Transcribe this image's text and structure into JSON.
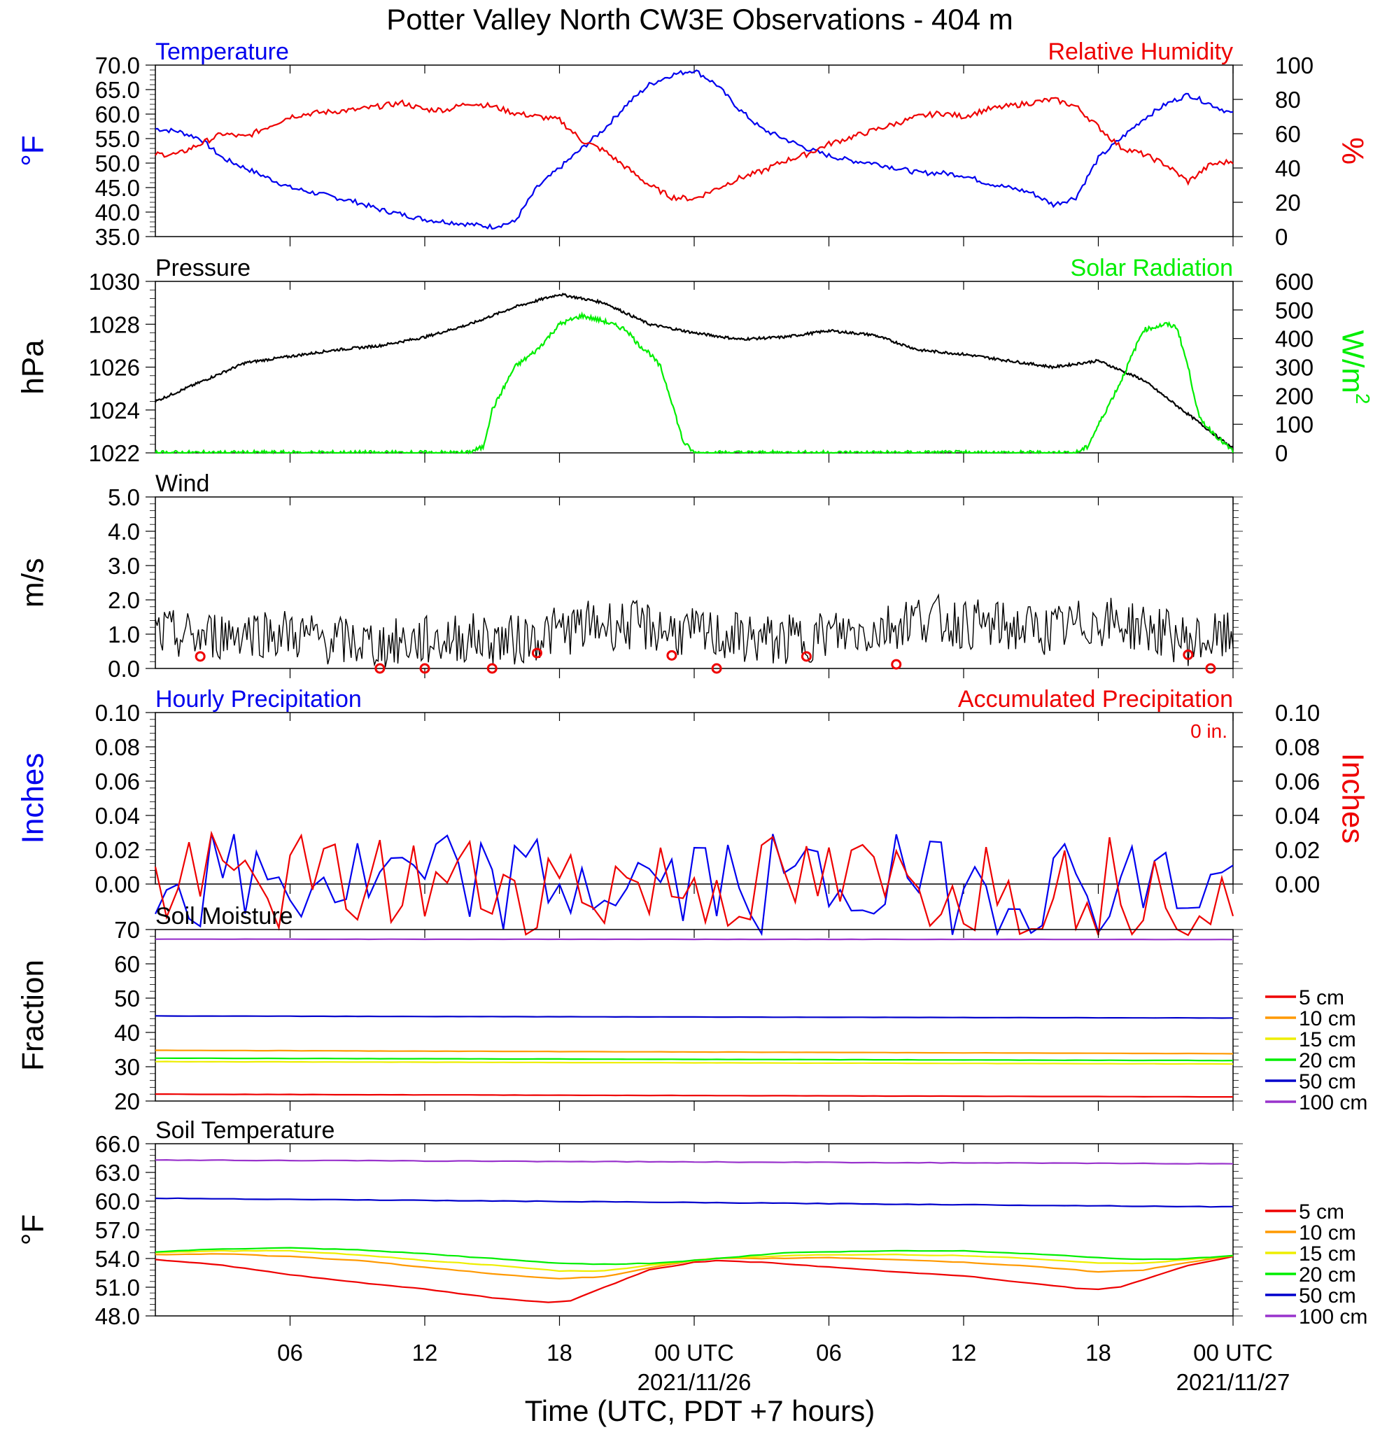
{
  "title": "Potter Valley North CW3E Observations - 404 m",
  "xlabel": "Time (UTC, PDT +7 hours)",
  "x_ticks": [
    {
      "t": 6,
      "label": "06"
    },
    {
      "t": 12,
      "label": "12"
    },
    {
      "t": 18,
      "label": "18"
    },
    {
      "t": 24,
      "label": "00 UTC",
      "date": "2021/11/26"
    },
    {
      "t": 30,
      "label": "06"
    },
    {
      "t": 36,
      "label": "12"
    },
    {
      "t": 42,
      "label": "18"
    },
    {
      "t": 48,
      "label": "00 UTC",
      "date": "2021/11/27"
    }
  ],
  "colors": {
    "temperature": "#0000ee",
    "humidity": "#ee0000",
    "pressure": "#000000",
    "solar": "#00ee00",
    "wind": "#000000",
    "wind_barb": "#ee0000"
  },
  "chart_data": [
    {
      "type": "line",
      "panel": "temp_rh",
      "title_left": "Temperature",
      "title_right": "Relative Humidity",
      "ylabel_left": "°F",
      "ylabel_right": "%",
      "ylim_left": [
        35,
        70
      ],
      "yticks_left": [
        "70.0",
        "65.0",
        "60.0",
        "55.0",
        "50.0",
        "45.0",
        "40.0",
        "35.0"
      ],
      "ylim_right": [
        0,
        100
      ],
      "yticks_right": [
        "100",
        "80",
        "60",
        "40",
        "20",
        "0"
      ],
      "x_range_hours": [
        0,
        48
      ],
      "series": [
        {
          "name": "Temperature",
          "axis": "left",
          "color": "#0000ee",
          "x": [
            0,
            1,
            2,
            3,
            4,
            5,
            6,
            7,
            8,
            9,
            10,
            11,
            12,
            13,
            14,
            15,
            16,
            17,
            18,
            19,
            20,
            21,
            22,
            23,
            24,
            25,
            26,
            27,
            28,
            29,
            30,
            31,
            32,
            33,
            34,
            35,
            36,
            37,
            38,
            39,
            40,
            41,
            42,
            43,
            44,
            45,
            46,
            47,
            48
          ],
          "values": [
            57,
            56.5,
            55,
            51,
            49,
            47,
            45,
            44,
            43,
            42,
            40.5,
            39.5,
            38.5,
            38,
            37.5,
            37,
            38,
            45,
            49,
            53,
            57,
            62,
            66,
            68,
            69,
            66,
            61,
            57,
            55,
            53,
            51.5,
            50.5,
            50,
            49,
            48,
            48,
            47.5,
            46,
            45,
            44,
            41.5,
            43,
            51,
            55,
            59,
            62,
            64,
            62,
            60
          ]
        },
        {
          "name": "Relative Humidity",
          "axis": "right",
          "color": "#ee0000",
          "x": [
            0,
            1,
            2,
            3,
            4,
            5,
            6,
            7,
            8,
            9,
            10,
            11,
            12,
            13,
            14,
            15,
            16,
            17,
            18,
            19,
            20,
            21,
            22,
            23,
            24,
            25,
            26,
            27,
            28,
            29,
            30,
            31,
            32,
            33,
            34,
            35,
            36,
            37,
            38,
            39,
            40,
            41,
            42,
            43,
            44,
            45,
            46,
            47,
            48
          ],
          "values": [
            48,
            48,
            54,
            60,
            58,
            64,
            70,
            72,
            73,
            74,
            76,
            78,
            74,
            74,
            78,
            76,
            72,
            70,
            68,
            56,
            50,
            40,
            30,
            23,
            22,
            28,
            34,
            38,
            44,
            48,
            54,
            58,
            62,
            66,
            70,
            72,
            70,
            74,
            76,
            78,
            80,
            76,
            64,
            52,
            48,
            42,
            32,
            42,
            44
          ]
        }
      ]
    },
    {
      "type": "line",
      "panel": "pressure_solar",
      "title_left": "Pressure",
      "title_right": "Solar Radiation",
      "ylabel_left": "hPa",
      "ylabel_right": "W/m",
      "ylabel_right_sup": "2",
      "ylim_left": [
        1022,
        1030
      ],
      "yticks_left": [
        "1030",
        "1028",
        "1026",
        "1024",
        "1022"
      ],
      "ylim_right": [
        0,
        600
      ],
      "yticks_right": [
        "600",
        "500",
        "400",
        "300",
        "200",
        "100",
        "0"
      ],
      "x_range_hours": [
        0,
        48
      ],
      "series": [
        {
          "name": "Pressure",
          "axis": "left",
          "color": "#000000",
          "x": [
            0,
            2,
            4,
            6,
            8,
            10,
            12,
            14,
            16,
            18,
            20,
            22,
            24,
            26,
            28,
            30,
            32,
            34,
            36,
            38,
            40,
            42,
            44,
            46,
            48
          ],
          "values": [
            1024.4,
            1025.3,
            1026.2,
            1026.5,
            1026.8,
            1027,
            1027.4,
            1028,
            1028.8,
            1029.4,
            1029,
            1028,
            1027.6,
            1027.3,
            1027.4,
            1027.7,
            1027.5,
            1026.8,
            1026.6,
            1026.3,
            1026,
            1026.3,
            1025.4,
            1023.8,
            1022.2
          ]
        },
        {
          "name": "Solar Radiation",
          "axis": "right",
          "color": "#00ee00",
          "x": [
            0,
            13.9,
            14.6,
            15,
            16,
            17,
            18,
            19,
            20,
            21,
            21.5,
            22,
            22.5,
            23,
            23.5,
            24,
            41,
            41.5,
            43,
            44,
            45,
            45.5,
            46,
            46.5,
            47,
            47.5,
            48
          ],
          "values": [
            0,
            0,
            20,
            150,
            300,
            360,
            450,
            480,
            460,
            430,
            380,
            350,
            300,
            180,
            40,
            0,
            0,
            20,
            250,
            430,
            450,
            440,
            300,
            120,
            80,
            40,
            5
          ]
        }
      ]
    },
    {
      "type": "line",
      "panel": "wind",
      "title_left": "Wind",
      "ylabel_left": "m/s",
      "ylim_left": [
        0,
        5
      ],
      "yticks_left": [
        "5.0",
        "4.0",
        "3.0",
        "2.0",
        "1.0",
        "0.0"
      ],
      "x_range_hours": [
        0,
        48
      ],
      "series": [
        {
          "name": "Wind speed",
          "axis": "left",
          "color": "#000000",
          "x": [
            0,
            2,
            4,
            6,
            8,
            10,
            12,
            14,
            16,
            18,
            20,
            22,
            24,
            26,
            28,
            30,
            32,
            34,
            36,
            38,
            40,
            42,
            44,
            46,
            48
          ],
          "values": [
            1.0,
            0.9,
            1.1,
            1.0,
            0.8,
            0.7,
            0.8,
            0.9,
            0.8,
            1.1,
            1.3,
            1.2,
            1.0,
            0.9,
            0.8,
            1.0,
            1.1,
            1.5,
            1.3,
            1.2,
            1.1,
            1.4,
            1.2,
            0.8,
            0.9
          ]
        }
      ],
      "barbs": [
        {
          "t": 2,
          "speed": 0.35
        },
        {
          "t": 10,
          "speed": 0.0
        },
        {
          "t": 12,
          "speed": 0.0
        },
        {
          "t": 15,
          "speed": 0.0
        },
        {
          "t": 17,
          "speed": 0.45
        },
        {
          "t": 23,
          "speed": 0.38
        },
        {
          "t": 25,
          "speed": 0.0
        },
        {
          "t": 29,
          "speed": 0.35
        },
        {
          "t": 33,
          "speed": 0.12
        },
        {
          "t": 46,
          "speed": 0.4
        },
        {
          "t": 47,
          "speed": 0.0
        }
      ]
    },
    {
      "type": "line",
      "panel": "precip",
      "title_left": "Hourly Precipitation",
      "title_right": "Accumulated Precipitation",
      "annotation": "0 in.",
      "ylabel_left": "Inches",
      "ylabel_right": "Inches",
      "ylim_left": [
        0,
        0.1
      ],
      "yticks_left": [
        "0.10",
        "0.08",
        "0.06",
        "0.04",
        "0.02",
        "0.00"
      ],
      "ylim_right": [
        0,
        0.1
      ],
      "yticks_right": [
        "0.10",
        "0.08",
        "0.06",
        "0.04",
        "0.02",
        "0.00"
      ],
      "x_range_hours": [
        0,
        48
      ],
      "series": [
        {
          "name": "Hourly Precipitation",
          "axis": "left",
          "color": "#0000ee",
          "x": [
            0,
            48
          ],
          "values": [
            0,
            0
          ]
        },
        {
          "name": "Accumulated Precipitation",
          "axis": "right",
          "color": "#ee0000",
          "x": [
            0,
            48
          ],
          "values": [
            0,
            0
          ]
        }
      ]
    },
    {
      "type": "line",
      "panel": "soil_moisture",
      "title_left": "Soil Moisture",
      "ylabel_left": "Fraction",
      "ylim_left": [
        20,
        70
      ],
      "yticks_left": [
        "70",
        "60",
        "50",
        "40",
        "30",
        "20"
      ],
      "x_range_hours": [
        0,
        48
      ],
      "legend_position": "right",
      "series": [
        {
          "name": "5 cm",
          "color": "#ee0000",
          "x": [
            0,
            48
          ],
          "values": [
            22,
            21.2
          ]
        },
        {
          "name": "10 cm",
          "color": "#ff9900",
          "x": [
            0,
            48
          ],
          "values": [
            34.8,
            33.8
          ]
        },
        {
          "name": "15 cm",
          "color": "#eeee00",
          "x": [
            0,
            48
          ],
          "values": [
            31.5,
            30.8
          ]
        },
        {
          "name": "20 cm",
          "color": "#00ee00",
          "x": [
            0,
            48
          ],
          "values": [
            32.5,
            31.8
          ]
        },
        {
          "name": "50 cm",
          "color": "#0000cc",
          "x": [
            0,
            48
          ],
          "values": [
            44.8,
            44.2
          ]
        },
        {
          "name": "100 cm",
          "color": "#9933cc",
          "x": [
            0,
            48
          ],
          "values": [
            67.2,
            67.1
          ]
        }
      ]
    },
    {
      "type": "line",
      "panel": "soil_temperature",
      "title_left": "Soil Temperature",
      "ylabel_left": "°F",
      "ylim_left": [
        48,
        66
      ],
      "yticks_left": [
        "66.0",
        "63.0",
        "60.0",
        "57.0",
        "54.0",
        "51.0",
        "48.0"
      ],
      "x_range_hours": [
        0,
        48
      ],
      "legend_position": "right",
      "series": [
        {
          "name": "5 cm",
          "color": "#ee0000",
          "x": [
            0,
            3,
            6,
            9,
            12,
            15,
            16.5,
            17.5,
            18.5,
            20,
            22,
            24,
            25,
            27,
            30,
            33,
            36,
            39,
            41,
            42,
            43,
            44,
            46,
            48
          ],
          "values": [
            53.9,
            53.3,
            52.3,
            51.5,
            50.8,
            49.9,
            49.6,
            49.4,
            49.6,
            51,
            52.8,
            53.6,
            53.8,
            53.6,
            53.1,
            52.6,
            52.2,
            51.4,
            50.9,
            50.8,
            51,
            51.8,
            53.3,
            54.2
          ]
        },
        {
          "name": "10 cm",
          "color": "#ff9900",
          "x": [
            0,
            3,
            6,
            9,
            12,
            15,
            18,
            20,
            22,
            24,
            25,
            27,
            30,
            33,
            36,
            39,
            42,
            44,
            46,
            48
          ],
          "values": [
            54.4,
            54.5,
            54.2,
            53.8,
            53.1,
            52.4,
            51.9,
            52.1,
            53,
            53.8,
            54,
            54,
            54.1,
            53.9,
            53.6,
            53.2,
            52.6,
            52.8,
            53.6,
            54.3
          ]
        },
        {
          "name": "15 cm",
          "color": "#eeee00",
          "x": [
            0,
            3,
            6,
            9,
            12,
            15,
            18,
            20,
            22,
            24,
            25,
            28,
            30,
            33,
            36,
            39,
            42,
            44,
            46,
            48
          ],
          "values": [
            54.6,
            54.8,
            54.8,
            54.4,
            53.8,
            53.3,
            52.7,
            52.7,
            53.3,
            53.8,
            54,
            54.3,
            54.4,
            54.4,
            54.3,
            54,
            53.5,
            53.5,
            53.9,
            54.3
          ]
        },
        {
          "name": "20 cm",
          "color": "#00ee00",
          "x": [
            0,
            3,
            6,
            9,
            12,
            15,
            18,
            20,
            22,
            24,
            25,
            28,
            30,
            33,
            36,
            39,
            42,
            44,
            46,
            48
          ],
          "values": [
            54.7,
            55,
            55.1,
            54.9,
            54.5,
            54,
            53.5,
            53.4,
            53.5,
            53.8,
            54,
            54.6,
            54.7,
            54.8,
            54.8,
            54.5,
            54.1,
            53.9,
            54,
            54.3
          ]
        },
        {
          "name": "50 cm",
          "color": "#0000cc",
          "x": [
            0,
            48
          ],
          "values": [
            60.3,
            59.4
          ]
        },
        {
          "name": "100 cm",
          "color": "#9933cc",
          "x": [
            0,
            48
          ],
          "values": [
            64.3,
            63.9
          ]
        }
      ]
    }
  ]
}
